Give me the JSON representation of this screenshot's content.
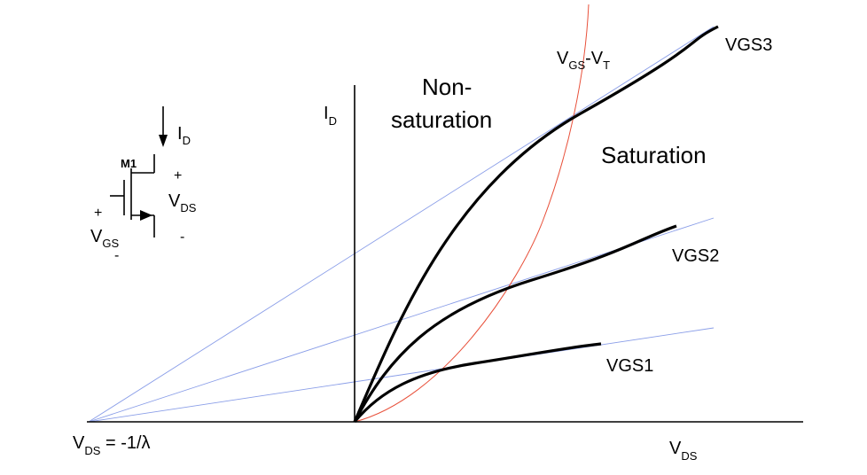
{
  "axes": {
    "y_label_main": "I",
    "y_label_sub": "D",
    "x_label_main": "V",
    "x_label_sub": "DS",
    "x_intercept_main": "V",
    "x_intercept_sub": "DS",
    "x_intercept_rest": " = -1/λ"
  },
  "regions": {
    "non_saturation_line1": "Non-",
    "non_saturation_line2": "saturation",
    "saturation": "Saturation"
  },
  "boundary": {
    "label_v1": "V",
    "label_s1": "GS",
    "label_dash": "-V",
    "label_s2": "T"
  },
  "curves": {
    "vgs1": "VGS1",
    "vgs2": "VGS2",
    "vgs3": "VGS3"
  },
  "transistor": {
    "name": "M1",
    "id_main": "I",
    "id_sub": "D",
    "vds_plus": "+",
    "vds_main": "V",
    "vds_sub": "DS",
    "vds_minus": "-",
    "vgs_plus": "+",
    "vgs_main": "V",
    "vgs_sub": "GS",
    "vgs_minus": "-"
  },
  "colors": {
    "curve": "#000000",
    "boundary": "#e8503a",
    "channel_length_lines": "#8a9ee8"
  }
}
